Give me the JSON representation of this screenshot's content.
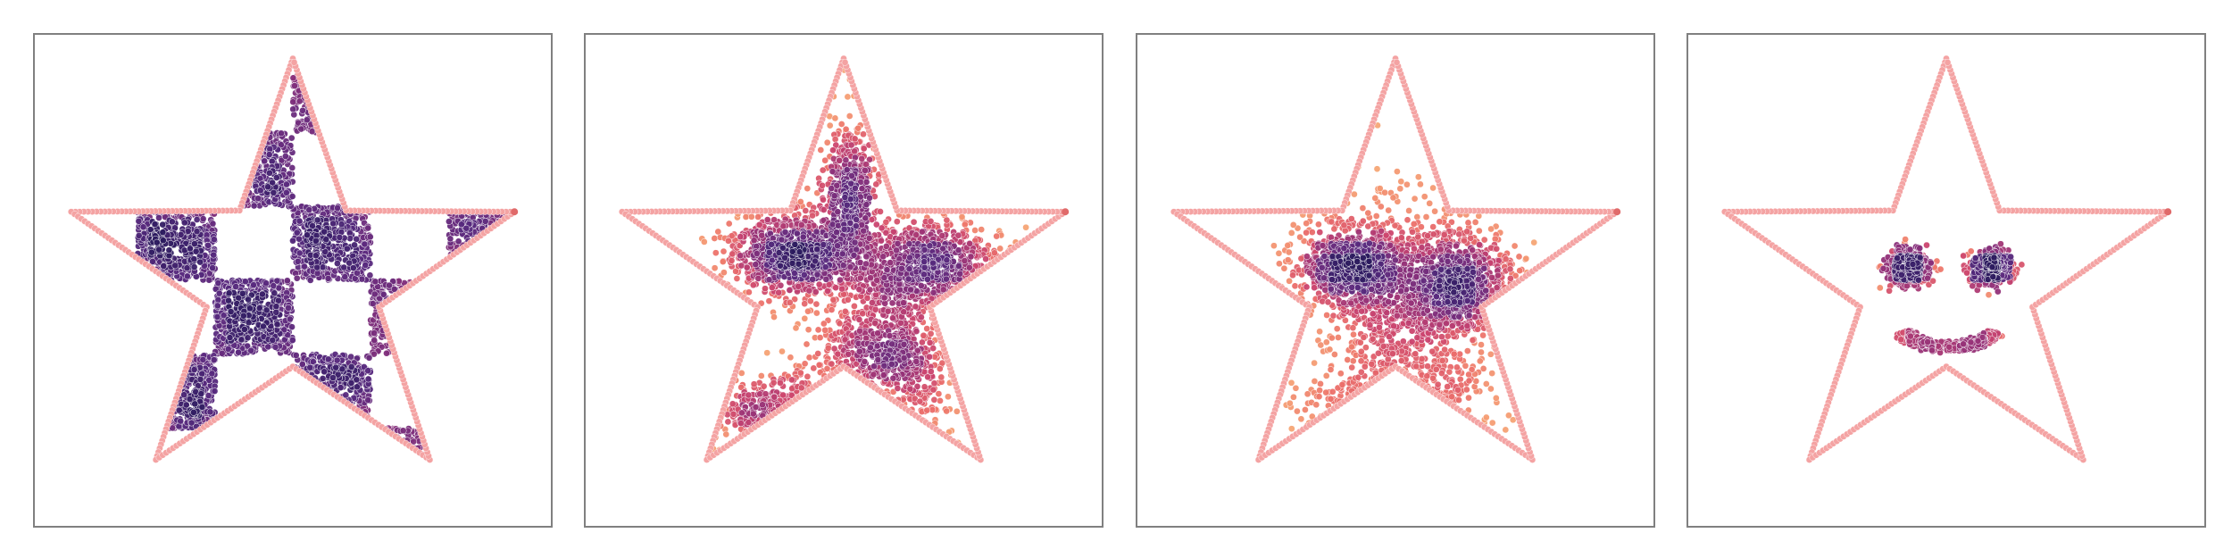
{
  "figure": {
    "background": "#ffffff",
    "frame_color": "#808080",
    "outline_color": "#f4a3a3",
    "outline_dark_color": "#e06a6a",
    "colormap": [
      "#fbd3a4",
      "#f6a575",
      "#ec6f6a",
      "#c9436f",
      "#8a2f7a",
      "#582a7e",
      "#2b1a5e"
    ]
  },
  "chart_data": [
    {
      "type": "scatter",
      "xlim": [
        -1.0,
        1.0
      ],
      "ylim": [
        -1.0,
        1.0
      ],
      "grid": false,
      "outline": "star",
      "pattern": "checkerboard",
      "blobs": [
        {
          "x": -0.2,
          "y": 0.0,
          "sx": 0.1,
          "sy": 0.1,
          "n": 0
        }
      ],
      "point_count": 2600,
      "seed": 11
    },
    {
      "type": "scatter",
      "xlim": [
        -1.0,
        1.0
      ],
      "ylim": [
        -1.0,
        1.0
      ],
      "grid": false,
      "outline": "star",
      "pattern": "blobs",
      "blobs": [
        {
          "x": -0.2,
          "y": 0.1,
          "sx": 0.13,
          "sy": 0.09,
          "n": 900
        },
        {
          "x": 0.32,
          "y": 0.06,
          "sx": 0.15,
          "sy": 0.1,
          "n": 850
        },
        {
          "x": 0.16,
          "y": -0.32,
          "sx": 0.14,
          "sy": 0.14,
          "n": 900
        },
        {
          "x": -0.22,
          "y": -0.56,
          "sx": 0.13,
          "sy": 0.08,
          "n": 650
        },
        {
          "x": 0.02,
          "y": 0.33,
          "sx": 0.05,
          "sy": 0.15,
          "n": 500
        }
      ],
      "seed": 23
    },
    {
      "type": "scatter",
      "xlim": [
        -1.0,
        1.0
      ],
      "ylim": [
        -1.0,
        1.0
      ],
      "grid": false,
      "outline": "star",
      "pattern": "blobs",
      "blobs": [
        {
          "x": -0.18,
          "y": 0.06,
          "sx": 0.1,
          "sy": 0.08,
          "n": 700
        },
        {
          "x": 0.25,
          "y": 0.0,
          "sx": 0.11,
          "sy": 0.1,
          "n": 700
        },
        {
          "x": 0.05,
          "y": -0.1,
          "sx": 0.16,
          "sy": 0.22,
          "n": 1000
        },
        {
          "x": -0.02,
          "y": -0.5,
          "sx": 0.18,
          "sy": 0.07,
          "n": 600
        }
      ],
      "seed": 37
    },
    {
      "type": "scatter",
      "xlim": [
        -1.0,
        1.0
      ],
      "ylim": [
        -1.0,
        1.0
      ],
      "grid": false,
      "outline": "star",
      "pattern": "smiley",
      "blobs": [
        {
          "x": -0.15,
          "y": 0.05,
          "sx": 0.04,
          "sy": 0.035,
          "n": 550
        },
        {
          "x": 0.17,
          "y": 0.05,
          "sx": 0.04,
          "sy": 0.035,
          "n": 550
        }
      ],
      "smile": {
        "cx": 0.01,
        "cy": -0.28,
        "r": 0.2,
        "n": 600
      },
      "seed": 51
    }
  ]
}
